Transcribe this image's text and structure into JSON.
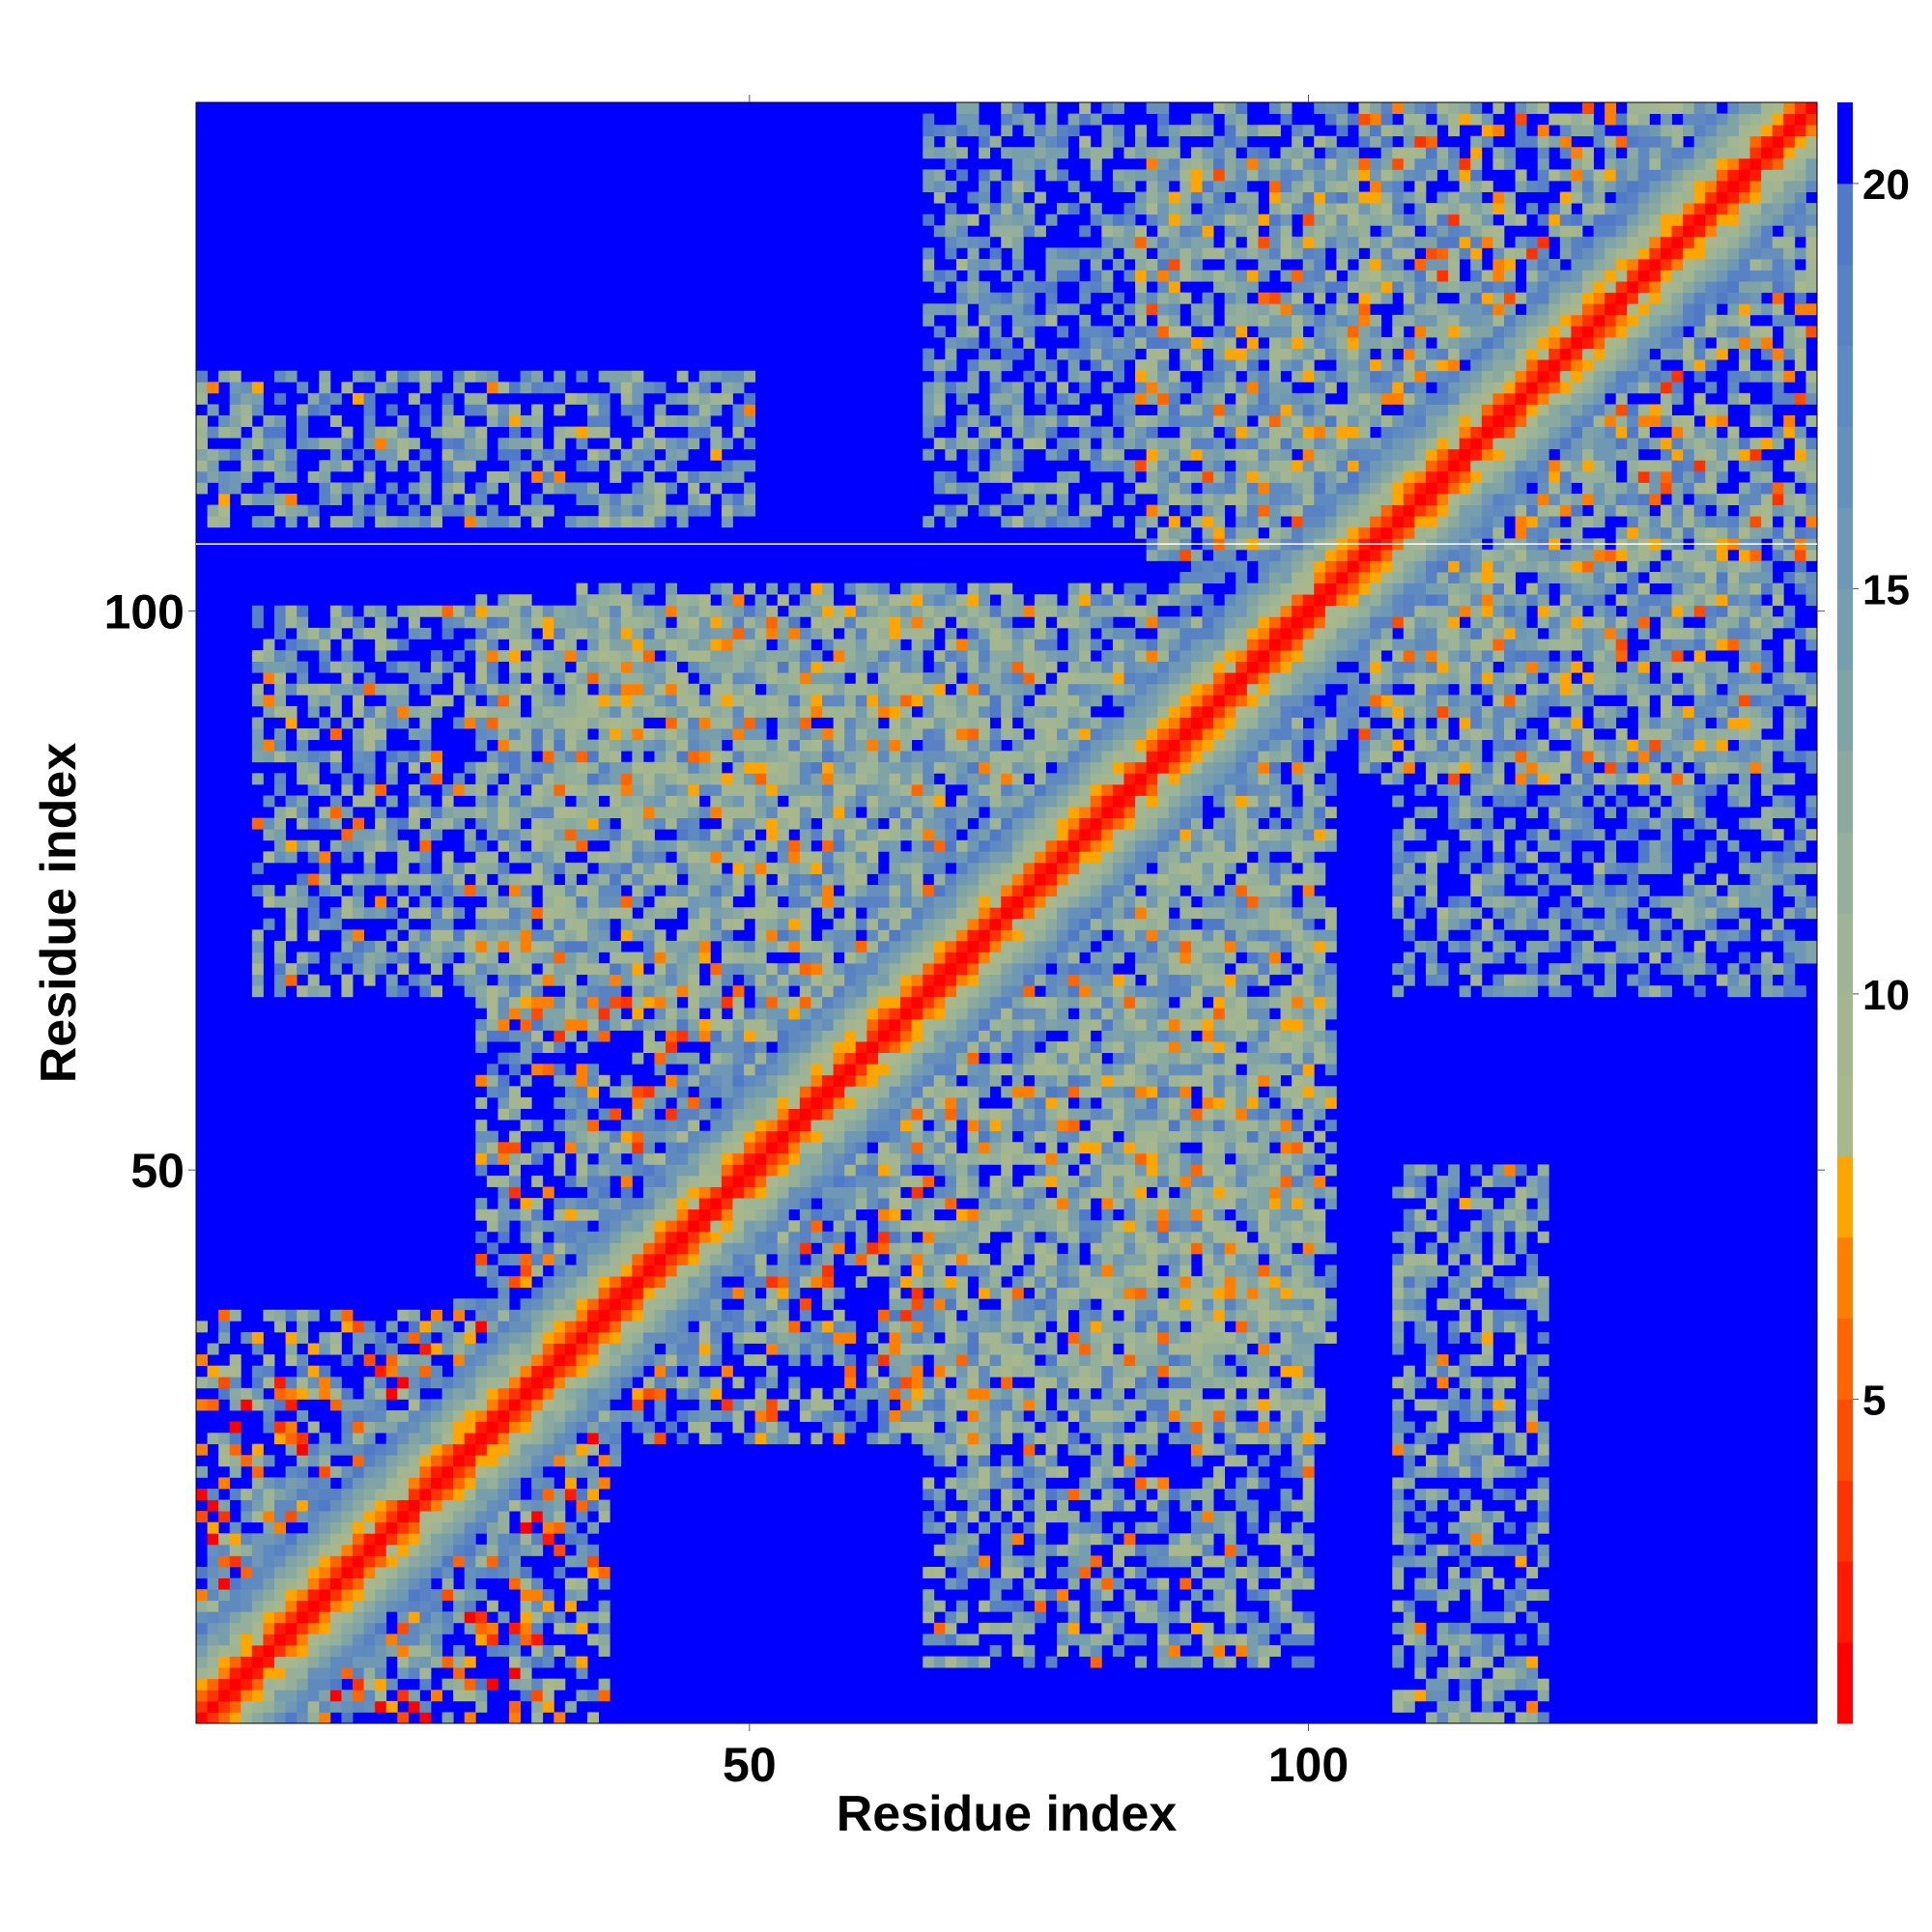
{
  "chart_data": {
    "type": "heatmap",
    "title": "",
    "xlabel": "Residue index",
    "ylabel": "Residue index",
    "n_residues": 145,
    "xlim": [
      0.5,
      145.5
    ],
    "ylim": [
      0.5,
      145.5
    ],
    "x_ticks": [
      50,
      100
    ],
    "y_ticks": [
      50,
      100
    ],
    "x_tick_labels": [
      "50",
      "100"
    ],
    "y_tick_labels": [
      "50",
      "100"
    ],
    "colorbar": {
      "range": [
        1,
        21
      ],
      "ticks": [
        5,
        10,
        15,
        20
      ],
      "tick_labels": [
        "5",
        "10",
        "15",
        "20"
      ],
      "bins": [
        {
          "min": 1,
          "max": 2,
          "color": "#ff0000"
        },
        {
          "min": 2,
          "max": 3,
          "color": "#ff1a00"
        },
        {
          "min": 3,
          "max": 4,
          "color": "#ff3300"
        },
        {
          "min": 4,
          "max": 5,
          "color": "#ff4d00"
        },
        {
          "min": 5,
          "max": 6,
          "color": "#ff6600"
        },
        {
          "min": 6,
          "max": 7,
          "color": "#ff8000"
        },
        {
          "min": 7,
          "max": 8,
          "color": "#ffa500"
        },
        {
          "min": 8,
          "max": 9,
          "color": "#a8b88c"
        },
        {
          "min": 9,
          "max": 10,
          "color": "#a4b690"
        },
        {
          "min": 10,
          "max": 11,
          "color": "#9db594"
        },
        {
          "min": 11,
          "max": 12,
          "color": "#94b09a"
        },
        {
          "min": 12,
          "max": 13,
          "color": "#8aaa9f"
        },
        {
          "min": 13,
          "max": 14,
          "color": "#80a4a6"
        },
        {
          "min": 14,
          "max": 15,
          "color": "#779ead"
        },
        {
          "min": 15,
          "max": 16,
          "color": "#6e98b4"
        },
        {
          "min": 16,
          "max": 17,
          "color": "#6690ba"
        },
        {
          "min": 17,
          "max": 18,
          "color": "#5f8ac0"
        },
        {
          "min": 18,
          "max": 19,
          "color": "#5882c4"
        },
        {
          "min": 19,
          "max": 20,
          "color": "#507ac8"
        },
        {
          "min": 20,
          "max": 21,
          "color": "#0000ff"
        }
      ]
    },
    "background_color": "#0000ff",
    "matrix_description": "distance_map_symmetric",
    "contact_regions": [
      {
        "i_range": [
          1,
          37
        ],
        "j_range": [
          1,
          37
        ],
        "min_value": 1,
        "max_value": 20
      },
      {
        "i_range": [
          26,
          60
        ],
        "j_range": [
          40,
          65
        ],
        "min_value": 3,
        "max_value": 19
      },
      {
        "i_range": [
          26,
          80
        ],
        "j_range": [
          62,
          101
        ],
        "min_value": 5,
        "max_value": 19
      },
      {
        "i_range": [
          35,
          90
        ],
        "j_range": [
          82,
          102
        ],
        "min_value": 6,
        "max_value": 19
      },
      {
        "i_range": [
          66,
          100
        ],
        "j_range": [
          6,
          65
        ],
        "min_value": 5,
        "max_value": 19
      },
      {
        "i_range": [
          85,
          105
        ],
        "j_range": [
          105,
          140
        ],
        "min_value": 4,
        "max_value": 19
      },
      {
        "i_range": [
          108,
          121
        ],
        "j_range": [
          1,
          50
        ],
        "min_value": 6,
        "max_value": 19
      },
      {
        "i_range": [
          112,
          145
        ],
        "j_range": [
          105,
          145
        ],
        "min_value": 3,
        "max_value": 19
      },
      {
        "i_range": [
          66,
          115
        ],
        "j_range": [
          108,
          145
        ],
        "min_value": 8,
        "max_value": 19
      }
    ],
    "diagonal_band": [
      {
        "offset": 0,
        "value": 1
      },
      {
        "offset": 1,
        "value": 3
      },
      {
        "offset": 2,
        "value": 6
      },
      {
        "offset": 3,
        "value": 8
      },
      {
        "offset": 4,
        "value": 10
      },
      {
        "offset": 5,
        "value": 12
      },
      {
        "offset": 6,
        "value": 14
      },
      {
        "offset": 7,
        "value": 16
      },
      {
        "offset": 8,
        "value": 18
      }
    ],
    "grid": false,
    "legend": "colorbar-right"
  }
}
